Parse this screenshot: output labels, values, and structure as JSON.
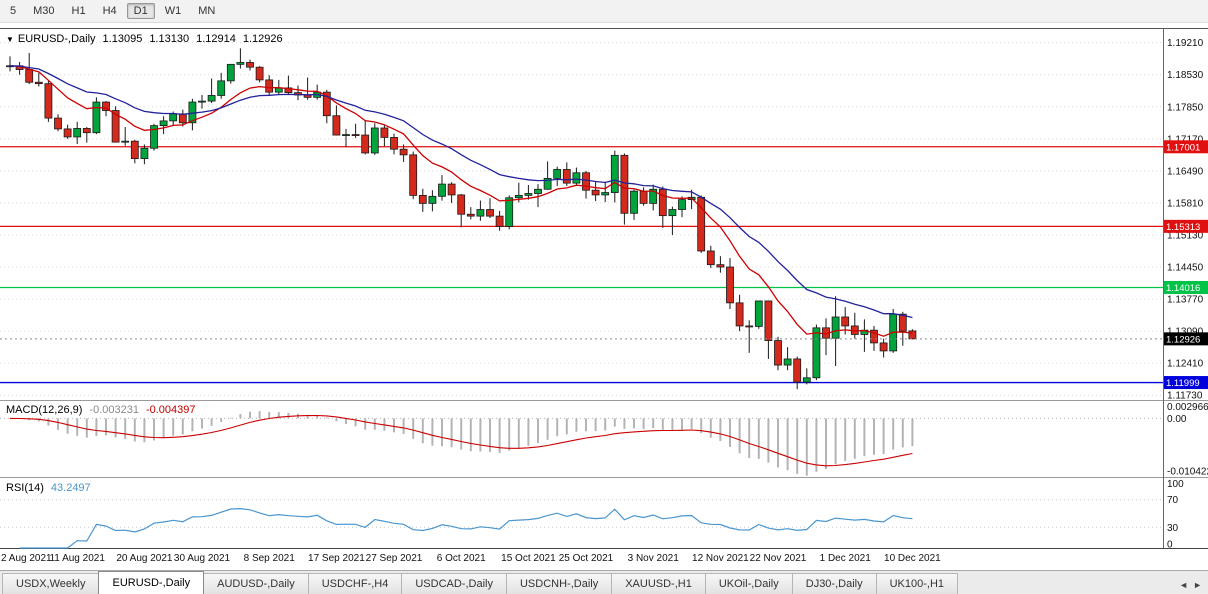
{
  "toolbar": {
    "timeframes": [
      "5",
      "M30",
      "H1",
      "H4",
      "D1",
      "W1",
      "MN"
    ],
    "active_timeframe": "D1"
  },
  "chart_header": {
    "symbol_label": "EURUSD-,Daily",
    "open": "1.13095",
    "high": "1.13130",
    "low": "1.12914",
    "close": "1.12926"
  },
  "indicator_macd": {
    "label": "MACD(12,26,9)",
    "main_value": "-0.003231",
    "signal_value": "-0.004397",
    "axis_max": "0.002966",
    "axis_zero": "0.00",
    "axis_min": "-0.010422"
  },
  "indicator_rsi": {
    "label": "RSI(14)",
    "value": "43.2497",
    "axis": [
      "100",
      "70",
      "30",
      "0"
    ]
  },
  "tabs": {
    "items": [
      "USDX,Weekly",
      "EURUSD-,Daily",
      "AUDUSD-,Daily",
      "USDCHF-,H4",
      "USDCAD-,Daily",
      "USDCNH-,Daily",
      "XAUUSD-,H1",
      "UKOil-,Daily",
      "DJ30-,Daily",
      "UK100-,H1"
    ],
    "active": "EURUSD-,Daily",
    "scroll_left": "◄",
    "scroll_right": "►"
  },
  "colors": {
    "bull": "#00a33c",
    "bear": "#d42a1d",
    "outline": "#1a1a1a",
    "grid": "#d9d9d9"
  },
  "chart_data": {
    "type": "candlestick",
    "symbol": "EURUSD-",
    "timeframe": "Daily",
    "price_range": [
      1.1165,
      1.195
    ],
    "price_ticks": [
      "1.19210",
      "1.18530",
      "1.17850",
      "1.17170",
      "1.16490",
      "1.15810",
      "1.15130",
      "1.14450",
      "1.13770",
      "1.13090",
      "1.12410",
      "1.11730"
    ],
    "x_axis_labels": [
      {
        "text": "2 Aug 2021",
        "bar": 0
      },
      {
        "text": "11 Aug 2021",
        "bar": 7
      },
      {
        "text": "20 Aug 2021",
        "bar": 14
      },
      {
        "text": "30 Aug 2021",
        "bar": 20
      },
      {
        "text": "8 Sep 2021",
        "bar": 27
      },
      {
        "text": "17 Sep 2021",
        "bar": 34
      },
      {
        "text": "27 Sep 2021",
        "bar": 40
      },
      {
        "text": "6 Oct 2021",
        "bar": 47
      },
      {
        "text": "15 Oct 2021",
        "bar": 54
      },
      {
        "text": "25 Oct 2021",
        "bar": 60
      },
      {
        "text": "3 Nov 2021",
        "bar": 67
      },
      {
        "text": "12 Nov 2021",
        "bar": 74
      },
      {
        "text": "22 Nov 2021",
        "bar": 80
      },
      {
        "text": "1 Dec 2021",
        "bar": 87
      },
      {
        "text": "10 Dec 2021",
        "bar": 94
      }
    ],
    "candles": [
      [
        1.187,
        1.1892,
        1.186,
        1.1872
      ],
      [
        1.1872,
        1.188,
        1.1853,
        1.1864
      ],
      [
        1.1864,
        1.1899,
        1.1833,
        1.1837
      ],
      [
        1.1837,
        1.1857,
        1.1828,
        1.1834
      ],
      [
        1.1834,
        1.184,
        1.1753,
        1.1761
      ],
      [
        1.1761,
        1.1769,
        1.1733,
        1.1738
      ],
      [
        1.1738,
        1.1747,
        1.1717,
        1.1721
      ],
      [
        1.1721,
        1.1753,
        1.1706,
        1.1739
      ],
      [
        1.1739,
        1.1742,
        1.1709,
        1.173
      ],
      [
        1.173,
        1.1805,
        1.1727,
        1.1795
      ],
      [
        1.1795,
        1.1797,
        1.1765,
        1.1777
      ],
      [
        1.1777,
        1.1786,
        1.1709,
        1.171
      ],
      [
        1.171,
        1.1742,
        1.1702,
        1.1712
      ],
      [
        1.1712,
        1.1715,
        1.1665,
        1.1675
      ],
      [
        1.1675,
        1.1705,
        1.1663,
        1.1697
      ],
      [
        1.1697,
        1.1749,
        1.1692,
        1.1745
      ],
      [
        1.1745,
        1.1765,
        1.1727,
        1.1755
      ],
      [
        1.1755,
        1.1775,
        1.1744,
        1.177
      ],
      [
        1.177,
        1.1779,
        1.1743,
        1.1751
      ],
      [
        1.1751,
        1.1802,
        1.1735,
        1.1795
      ],
      [
        1.1795,
        1.181,
        1.1781,
        1.1797
      ],
      [
        1.1797,
        1.1845,
        1.1793,
        1.1809
      ],
      [
        1.1809,
        1.1857,
        1.1802,
        1.184
      ],
      [
        1.184,
        1.1876,
        1.1834,
        1.1875
      ],
      [
        1.1875,
        1.1909,
        1.1866,
        1.1879
      ],
      [
        1.1879,
        1.1885,
        1.1862,
        1.1869
      ],
      [
        1.1869,
        1.1871,
        1.1837,
        1.1842
      ],
      [
        1.1842,
        1.1852,
        1.181,
        1.1816
      ],
      [
        1.1816,
        1.1842,
        1.181,
        1.1825
      ],
      [
        1.1825,
        1.1851,
        1.181,
        1.1815
      ],
      [
        1.1815,
        1.183,
        1.1799,
        1.181
      ],
      [
        1.181,
        1.1847,
        1.18,
        1.1805
      ],
      [
        1.1805,
        1.1832,
        1.18,
        1.1816
      ],
      [
        1.1816,
        1.1821,
        1.175,
        1.1766
      ],
      [
        1.1766,
        1.1788,
        1.1724,
        1.1725
      ],
      [
        1.1725,
        1.1738,
        1.17,
        1.1726
      ],
      [
        1.1726,
        1.1749,
        1.1719,
        1.1725
      ],
      [
        1.1725,
        1.1756,
        1.1684,
        1.1687
      ],
      [
        1.1687,
        1.175,
        1.1683,
        1.174
      ],
      [
        1.174,
        1.1747,
        1.1701,
        1.172
      ],
      [
        1.172,
        1.1728,
        1.1684,
        1.1695
      ],
      [
        1.1695,
        1.1705,
        1.1668,
        1.1683
      ],
      [
        1.1683,
        1.169,
        1.1589,
        1.1597
      ],
      [
        1.1597,
        1.1611,
        1.1562,
        1.158
      ],
      [
        1.158,
        1.1608,
        1.1563,
        1.1595
      ],
      [
        1.1595,
        1.164,
        1.1586,
        1.1621
      ],
      [
        1.1621,
        1.1625,
        1.1581,
        1.1598
      ],
      [
        1.1598,
        1.16,
        1.1529,
        1.1557
      ],
      [
        1.1557,
        1.1572,
        1.1546,
        1.1553
      ],
      [
        1.1553,
        1.1586,
        1.1543,
        1.1567
      ],
      [
        1.1567,
        1.1591,
        1.1549,
        1.1553
      ],
      [
        1.1553,
        1.1564,
        1.1522,
        1.1531
      ],
      [
        1.1531,
        1.1597,
        1.1525,
        1.1592
      ],
      [
        1.1592,
        1.1624,
        1.1582,
        1.1597
      ],
      [
        1.1597,
        1.1619,
        1.1588,
        1.1601
      ],
      [
        1.1601,
        1.1621,
        1.1572,
        1.161
      ],
      [
        1.161,
        1.1669,
        1.1609,
        1.1633
      ],
      [
        1.1633,
        1.1658,
        1.1617,
        1.1652
      ],
      [
        1.1652,
        1.1667,
        1.1617,
        1.1623
      ],
      [
        1.1623,
        1.1656,
        1.162,
        1.1645
      ],
      [
        1.1645,
        1.1649,
        1.159,
        1.1608
      ],
      [
        1.1608,
        1.1626,
        1.1585,
        1.1598
      ],
      [
        1.1598,
        1.1626,
        1.1583,
        1.1603
      ],
      [
        1.1603,
        1.1692,
        1.1582,
        1.1682
      ],
      [
        1.1682,
        1.1686,
        1.1535,
        1.1559
      ],
      [
        1.1559,
        1.1609,
        1.1545,
        1.1606
      ],
      [
        1.1606,
        1.1614,
        1.1575,
        1.158
      ],
      [
        1.158,
        1.162,
        1.1565,
        1.161
      ],
      [
        1.161,
        1.1616,
        1.1528,
        1.1554
      ],
      [
        1.1554,
        1.1573,
        1.1513,
        1.1567
      ],
      [
        1.1567,
        1.1595,
        1.1551,
        1.1588
      ],
      [
        1.1588,
        1.1609,
        1.1568,
        1.1593
      ],
      [
        1.1593,
        1.1597,
        1.1475,
        1.1479
      ],
      [
        1.1479,
        1.149,
        1.1443,
        1.145
      ],
      [
        1.145,
        1.1468,
        1.1433,
        1.1445
      ],
      [
        1.1445,
        1.1464,
        1.1356,
        1.1369
      ],
      [
        1.1369,
        1.1386,
        1.1309,
        1.132
      ],
      [
        1.132,
        1.1332,
        1.1263,
        1.1319
      ],
      [
        1.1319,
        1.1374,
        1.1314,
        1.1373
      ],
      [
        1.1373,
        1.1374,
        1.125,
        1.1289
      ],
      [
        1.1289,
        1.1297,
        1.1226,
        1.1237
      ],
      [
        1.1237,
        1.1275,
        1.1226,
        1.125
      ],
      [
        1.125,
        1.1255,
        1.1186,
        1.1201
      ],
      [
        1.1201,
        1.123,
        1.1196,
        1.121
      ],
      [
        1.121,
        1.1323,
        1.1205,
        1.1316
      ],
      [
        1.1316,
        1.1336,
        1.1258,
        1.1294
      ],
      [
        1.1294,
        1.1383,
        1.1235,
        1.1339
      ],
      [
        1.1339,
        1.136,
        1.1302,
        1.132
      ],
      [
        1.132,
        1.1348,
        1.1293,
        1.1302
      ],
      [
        1.1302,
        1.1334,
        1.1265,
        1.1311
      ],
      [
        1.1311,
        1.132,
        1.1267,
        1.1284
      ],
      [
        1.1284,
        1.1293,
        1.1253,
        1.1267
      ],
      [
        1.1267,
        1.1356,
        1.1263,
        1.1345
      ],
      [
        1.1345,
        1.135,
        1.1278,
        1.1309
      ],
      [
        1.13095,
        1.1313,
        1.12914,
        1.12926
      ]
    ],
    "moving_averages": [
      {
        "name": "fast",
        "period": 10,
        "method": "ema",
        "color": "#cc0000"
      },
      {
        "name": "slow",
        "period": 21,
        "method": "ema",
        "color": "#22229a"
      }
    ],
    "horizontal_lines": [
      {
        "price": 1.17001,
        "label": "1.17001",
        "color": "#e01010"
      },
      {
        "price": 1.15313,
        "label": "1.15313",
        "color": "#e01010"
      },
      {
        "price": 1.14016,
        "label": "1.14016",
        "color": "#00c447"
      },
      {
        "price": 1.11999,
        "label": "1.11999",
        "color": "#0000dd"
      }
    ],
    "current_price": {
      "value": 1.12926,
      "label": "1.12926",
      "badge_color": "#000000"
    },
    "macd": {
      "fast": 12,
      "slow": 26,
      "signal": 9,
      "histogram_color": "#b4b4b4",
      "signal_color": "#cc0000"
    },
    "rsi": {
      "period": 14,
      "color": "#4a96cf",
      "levels": [
        70,
        30
      ]
    }
  }
}
